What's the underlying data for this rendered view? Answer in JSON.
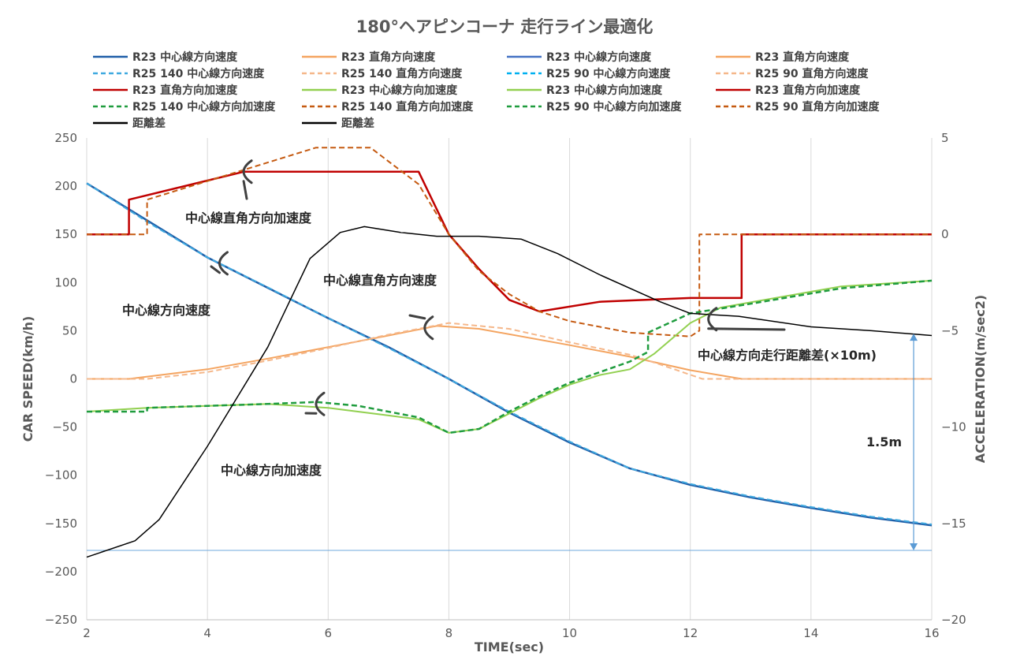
{
  "chart_data": {
    "type": "line",
    "title": "180°ヘアピンコーナ 走行ライン最適化",
    "xlabel": "TIME(sec)",
    "ylabel": "CAR SPEED(km/h)",
    "y2label": "ACCELERATION(m/sec2)",
    "xlim": [
      2,
      16
    ],
    "ylim": [
      -250,
      250
    ],
    "y2lim": [
      -20,
      5
    ],
    "x_ticks": [
      "2",
      "4",
      "6",
      "8",
      "10",
      "12",
      "14",
      "16"
    ],
    "y_ticks": [
      "250",
      "200",
      "150",
      "100",
      "50",
      "0",
      "−50",
      "−100",
      "−150",
      "−200",
      "−250"
    ],
    "y2_ticks": [
      "5",
      "0",
      "−5",
      "−10",
      "−15",
      "−20"
    ],
    "grid": "vertical",
    "legend": "top",
    "series": [
      {
        "name": "R23 中心線方向速度",
        "axis": "left",
        "color": "#1f5fa8",
        "dash": "solid",
        "width": 2.5,
        "points": [
          [
            2,
            203
          ],
          [
            4,
            126
          ],
          [
            6,
            63
          ],
          [
            7,
            33
          ],
          [
            8,
            0
          ],
          [
            9,
            -35
          ],
          [
            10,
            -66
          ],
          [
            11,
            -93
          ],
          [
            12,
            -110
          ],
          [
            13,
            -123
          ],
          [
            14,
            -134
          ],
          [
            15,
            -144
          ],
          [
            16,
            -152
          ]
        ]
      },
      {
        "name": "R25 140 中心線方向速度",
        "axis": "left",
        "color": "#3fa9e0",
        "dash": "dashed",
        "width": 2,
        "points": [
          [
            2,
            203
          ],
          [
            3,
            163
          ],
          [
            4,
            126
          ],
          [
            5,
            95
          ],
          [
            6,
            63
          ],
          [
            7,
            32
          ],
          [
            8,
            0
          ],
          [
            9,
            -34
          ],
          [
            10,
            -65
          ],
          [
            11,
            -93
          ],
          [
            12,
            -109
          ],
          [
            13,
            -122
          ],
          [
            14,
            -133
          ],
          [
            15,
            -143
          ],
          [
            16,
            -151
          ]
        ]
      },
      {
        "name": "R23 直角方向速度",
        "axis": "left",
        "color": "#f4a460",
        "dash": "solid",
        "width": 2,
        "points": [
          [
            2,
            0
          ],
          [
            2.7,
            0
          ],
          [
            4,
            10
          ],
          [
            5,
            21
          ],
          [
            6,
            33
          ],
          [
            7,
            45
          ],
          [
            7.8,
            55
          ],
          [
            8.5,
            52
          ],
          [
            10,
            35
          ],
          [
            11,
            23
          ],
          [
            12,
            9
          ],
          [
            12.85,
            0
          ],
          [
            16,
            0
          ]
        ]
      },
      {
        "name": "R25 140 直角方向速度",
        "axis": "left",
        "color": "#f5b78a",
        "dash": "dashed",
        "width": 2,
        "points": [
          [
            2,
            0
          ],
          [
            3,
            0
          ],
          [
            4,
            7
          ],
          [
            5,
            19
          ],
          [
            6,
            32
          ],
          [
            7,
            46
          ],
          [
            8,
            58
          ],
          [
            9,
            52
          ],
          [
            10,
            38
          ],
          [
            11,
            25
          ],
          [
            11.5,
            15
          ],
          [
            12.2,
            0
          ],
          [
            16,
            0
          ]
        ]
      },
      {
        "name": "R23 直角方向加速度",
        "axis": "right",
        "color": "#c00000",
        "dash": "solid",
        "width": 2.5,
        "points": [
          [
            2,
            0
          ],
          [
            2.7,
            0
          ],
          [
            2.7,
            1.8
          ],
          [
            4.6,
            3.25
          ],
          [
            7.5,
            3.25
          ],
          [
            8,
            0
          ],
          [
            8.5,
            -1.8
          ],
          [
            9,
            -3.4
          ],
          [
            9.5,
            -4.0
          ],
          [
            10.5,
            -3.5
          ],
          [
            12,
            -3.3
          ],
          [
            12.85,
            -3.3
          ],
          [
            12.85,
            0
          ],
          [
            16,
            0
          ]
        ]
      },
      {
        "name": "R25 140 直角方向加速度",
        "axis": "right",
        "color": "#c55a11",
        "dash": "dashed",
        "width": 2,
        "points": [
          [
            2,
            0
          ],
          [
            3,
            0
          ],
          [
            3,
            1.8
          ],
          [
            5.8,
            4.5
          ],
          [
            6.7,
            4.5
          ],
          [
            7.5,
            2.6
          ],
          [
            8,
            0
          ],
          [
            8.5,
            -1.9
          ],
          [
            9,
            -3.1
          ],
          [
            9.5,
            -4.0
          ],
          [
            10,
            -4.5
          ],
          [
            11,
            -5.1
          ],
          [
            12,
            -5.3
          ],
          [
            12.15,
            -5.0
          ],
          [
            12.15,
            0
          ],
          [
            16,
            0
          ]
        ]
      },
      {
        "name": "R23 中心線方向加速度",
        "axis": "right",
        "color": "#92d050",
        "dash": "solid",
        "width": 2,
        "points": [
          [
            2,
            -9.2
          ],
          [
            3,
            -9.0
          ],
          [
            4,
            -8.9
          ],
          [
            5,
            -8.8
          ],
          [
            6,
            -9.0
          ],
          [
            7,
            -9.4
          ],
          [
            7.5,
            -9.6
          ],
          [
            8,
            -10.3
          ],
          [
            8.5,
            -10.1
          ],
          [
            9,
            -9.3
          ],
          [
            9.5,
            -8.5
          ],
          [
            10,
            -7.8
          ],
          [
            10.5,
            -7.3
          ],
          [
            11,
            -7.0
          ],
          [
            11.4,
            -6.2
          ],
          [
            12,
            -4.6
          ],
          [
            12.5,
            -3.8
          ],
          [
            14.5,
            -2.7
          ],
          [
            16,
            -2.4
          ]
        ]
      },
      {
        "name": "R25 140 中心線方向加速度",
        "axis": "right",
        "color": "#1f9c3e",
        "dash": "dashed",
        "width": 2.5,
        "points": [
          [
            2,
            -9.2
          ],
          [
            3,
            -9.2
          ],
          [
            3,
            -9.0
          ],
          [
            4,
            -8.9
          ],
          [
            5,
            -8.8
          ],
          [
            5.8,
            -8.7
          ],
          [
            6.5,
            -8.9
          ],
          [
            7.5,
            -9.5
          ],
          [
            8,
            -10.3
          ],
          [
            8.5,
            -10.1
          ],
          [
            9,
            -9.2
          ],
          [
            9.5,
            -8.4
          ],
          [
            10,
            -7.7
          ],
          [
            11,
            -6.6
          ],
          [
            11.3,
            -6.1
          ],
          [
            11.3,
            -5.1
          ],
          [
            12,
            -4.1
          ],
          [
            13,
            -3.6
          ],
          [
            14.5,
            -2.8
          ],
          [
            16,
            -2.4
          ]
        ]
      },
      {
        "name": "距離差",
        "axis": "left",
        "color": "#000000",
        "dash": "solid",
        "width": 1.5,
        "points": [
          [
            2,
            -185
          ],
          [
            2.8,
            -168
          ],
          [
            3.2,
            -146
          ],
          [
            4,
            -70
          ],
          [
            5,
            33
          ],
          [
            5.7,
            125
          ],
          [
            6.2,
            152
          ],
          [
            6.6,
            158
          ],
          [
            7.2,
            152
          ],
          [
            7.8,
            148
          ],
          [
            8.5,
            148
          ],
          [
            9.2,
            145
          ],
          [
            9.8,
            130
          ],
          [
            10.5,
            108
          ],
          [
            11.5,
            80
          ],
          [
            12,
            68
          ],
          [
            12.8,
            65
          ],
          [
            14,
            54
          ],
          [
            15,
            50
          ],
          [
            16,
            45
          ]
        ]
      }
    ],
    "legend_entries": [
      {
        "label": "R23 中心線方向速度",
        "color": "#1f5fa8",
        "dash": "solid"
      },
      {
        "label": "R23 直角方向速度",
        "color": "#f4a460",
        "dash": "solid"
      },
      {
        "label": "R23 中心線方向速度",
        "color": "#4472c4",
        "dash": "solid"
      },
      {
        "label": "R23 直角方向速度",
        "color": "#f4a460",
        "dash": "solid"
      },
      {
        "label": "R25 140 中心線方向速度",
        "color": "#3fa9e0",
        "dash": "dashed"
      },
      {
        "label": "R25 140 直角方向速度",
        "color": "#f5b78a",
        "dash": "dashed"
      },
      {
        "label": "R25 90 中心線方向速度",
        "color": "#00b0f0",
        "dash": "dashed"
      },
      {
        "label": "R25 90 直角方向速度",
        "color": "#f5b78a",
        "dash": "dashed"
      },
      {
        "label": "R23 直角方向加速度",
        "color": "#c00000",
        "dash": "solid"
      },
      {
        "label": "R23 中心線方向加速度",
        "color": "#92d050",
        "dash": "solid"
      },
      {
        "label": "R23 中心線方向加速度",
        "color": "#92d050",
        "dash": "solid"
      },
      {
        "label": "R23 直角方向加速度",
        "color": "#c00000",
        "dash": "solid"
      },
      {
        "label": "R25 140 中心線方向加速度",
        "color": "#1f9c3e",
        "dash": "dashed"
      },
      {
        "label": "R25 140 直角方向加速度",
        "color": "#c55a11",
        "dash": "dashed"
      },
      {
        "label": "R25 90 中心線方向加速度",
        "color": "#1f9c3e",
        "dash": "dashed"
      },
      {
        "label": "R25 90 直角方向加速度",
        "color": "#c55a11",
        "dash": "dashed"
      },
      {
        "label": "距離差",
        "color": "#000000",
        "dash": "solid"
      },
      {
        "label": "距離差",
        "color": "#000000",
        "dash": "solid"
      }
    ],
    "reference_line": {
      "y": -178,
      "axis": "left",
      "color": "#6fa8dc"
    },
    "dimension_arrow": {
      "x": 15.7,
      "y_top": 47,
      "y_bottom": -178,
      "color": "#5b9bd5",
      "label": "1.5m"
    },
    "annotations": [
      {
        "text": "中心線直角方向加速度",
        "target": [
          4.6,
          3.25
        ],
        "axis": "right",
        "color": "#262626"
      },
      {
        "text": "中心線方向速度",
        "target": [
          4.2,
          120
        ],
        "axis": "left",
        "color": "#262626"
      },
      {
        "text": "中心線直角方向速度",
        "target": [
          7.6,
          53
        ],
        "axis": "left",
        "color": "#262626"
      },
      {
        "text": "中心線方向加速度",
        "target": [
          5.8,
          -8.8
        ],
        "axis": "right",
        "color": "#262626"
      },
      {
        "text": "中心線方向走行距離差(×10m)",
        "target": [
          12.3,
          62
        ],
        "axis": "left",
        "color": "#262626"
      }
    ]
  }
}
